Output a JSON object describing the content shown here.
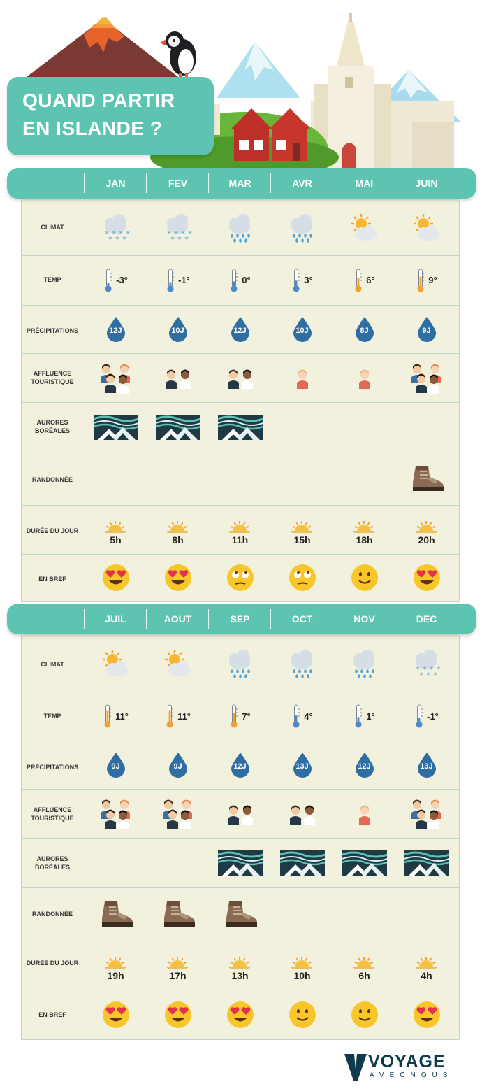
{
  "header": {
    "title_line1": "QUAND PARTIR",
    "title_line2": "EN ISLANDE ?"
  },
  "row_labels": {
    "climate": "CLIMAT",
    "temp": "TEMP",
    "precip": "PRÉCIPITATIONS",
    "crowd_line1": "AFFLUENCE",
    "crowd_line2": "TOURISTIQUE",
    "aurora_line1": "AURORES",
    "aurora_line2": "BORÉALES",
    "hike": "RANDONNÉE",
    "daylight": "DURÉE DU JOUR",
    "verdict": "EN BREF"
  },
  "sections": [
    {
      "months": [
        {
          "name": "JAN",
          "climate": "snow",
          "temp": "-3°",
          "temp_level": 0.2,
          "rain": "12J",
          "crowd": 4,
          "aurora": true,
          "hike": false,
          "daylight": "5h",
          "mood": "love"
        },
        {
          "name": "FEV",
          "climate": "snow",
          "temp": "-1°",
          "temp_level": 0.25,
          "rain": "10J",
          "crowd": 2,
          "aurora": true,
          "hike": false,
          "daylight": "8h",
          "mood": "love"
        },
        {
          "name": "MAR",
          "climate": "rain",
          "temp": "0°",
          "temp_level": 0.3,
          "rain": "12J",
          "crowd": 2,
          "aurora": true,
          "hike": false,
          "daylight": "11h",
          "mood": "roll"
        },
        {
          "name": "AVR",
          "climate": "rain",
          "temp": "3°",
          "temp_level": 0.35,
          "rain": "10J",
          "crowd": 1,
          "aurora": false,
          "hike": false,
          "daylight": "15h",
          "mood": "roll"
        },
        {
          "name": "MAI",
          "climate": "sun",
          "temp": "6°",
          "temp_level": 0.5,
          "rain": "8J",
          "crowd": 1,
          "aurora": false,
          "hike": false,
          "daylight": "18h",
          "mood": "smile"
        },
        {
          "name": "JUIN",
          "climate": "sun",
          "temp": "9°",
          "temp_level": 0.6,
          "rain": "9J",
          "crowd": 4,
          "aurora": false,
          "hike": true,
          "daylight": "20h",
          "mood": "love"
        }
      ]
    },
    {
      "months": [
        {
          "name": "JUIL",
          "climate": "sun",
          "temp": "11°",
          "temp_level": 0.75,
          "rain": "9J",
          "crowd": 4,
          "aurora": false,
          "hike": true,
          "daylight": "19h",
          "mood": "love"
        },
        {
          "name": "AOUT",
          "climate": "sun",
          "temp": "11°",
          "temp_level": 0.75,
          "rain": "9J",
          "crowd": 4,
          "aurora": false,
          "hike": true,
          "daylight": "17h",
          "mood": "love"
        },
        {
          "name": "SEP",
          "climate": "rain",
          "temp": "7°",
          "temp_level": 0.55,
          "rain": "12J",
          "crowd": 2,
          "aurora": true,
          "hike": true,
          "daylight": "13h",
          "mood": "love"
        },
        {
          "name": "OCT",
          "climate": "rain",
          "temp": "4°",
          "temp_level": 0.4,
          "rain": "13J",
          "crowd": 2,
          "aurora": true,
          "hike": false,
          "daylight": "10h",
          "mood": "smile"
        },
        {
          "name": "NOV",
          "climate": "rain",
          "temp": "1°",
          "temp_level": 0.3,
          "rain": "12J",
          "crowd": 1,
          "aurora": true,
          "hike": false,
          "daylight": "6h",
          "mood": "smile"
        },
        {
          "name": "DEC",
          "climate": "snow",
          "temp": "-1°",
          "temp_level": 0.25,
          "rain": "13J",
          "crowd": 4,
          "aurora": true,
          "hike": false,
          "daylight": "4h",
          "mood": "love"
        }
      ]
    }
  ],
  "logo": {
    "word": "VOYAGE",
    "sub": "AVECNOUS"
  },
  "colors": {
    "teal": "#5cc4b1",
    "cream": "#f2f1dd",
    "drop": "#2e6ea3",
    "sun": "#f7c040",
    "navy": "#0f3a4b"
  }
}
